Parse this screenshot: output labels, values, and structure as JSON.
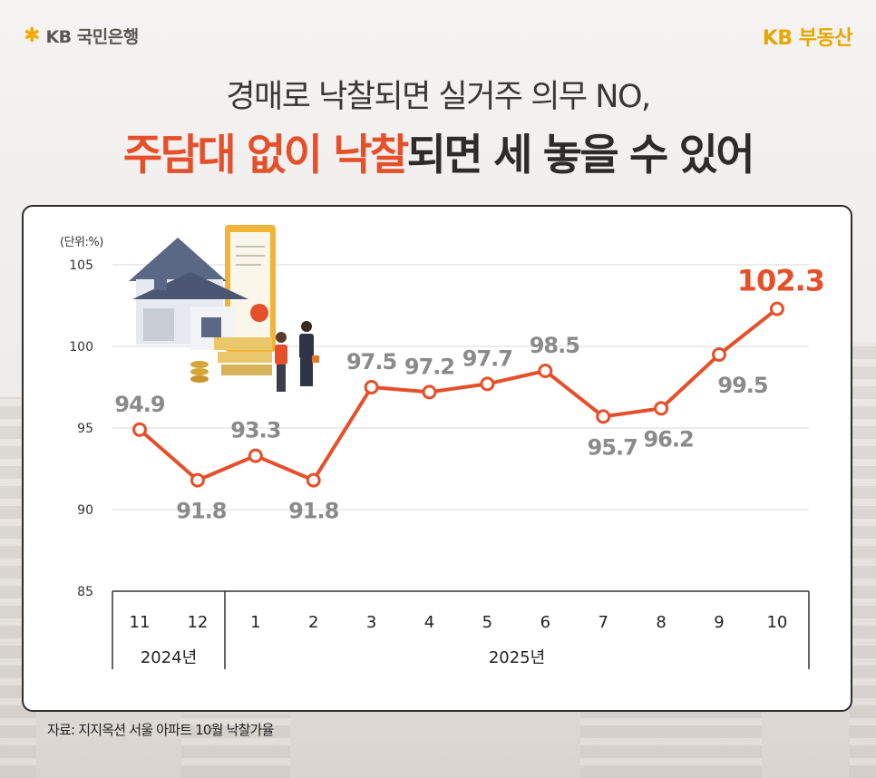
{
  "header": {
    "brand_left": "KB 국민은행",
    "brand_right": "KB 부동산"
  },
  "title": {
    "line1": "경매로 낙찰되면 실거주 의무 NO,",
    "line2_highlight": "주담대 없이 낙찰",
    "line2_rest": "되면 세 놓을 수 있어"
  },
  "colors": {
    "accent": "#e5502a",
    "label_gray": "#8a8a8a",
    "brand_gold": "#e8a600"
  },
  "illustration": {
    "icon": "house-contract-handshake-icon"
  },
  "chart_data": {
    "type": "line",
    "unit_label": "(단위:%)",
    "categories": [
      "11",
      "12",
      "1",
      "2",
      "3",
      "4",
      "5",
      "6",
      "7",
      "8",
      "9",
      "10"
    ],
    "year_groups": [
      {
        "label": "2024년",
        "span": 2
      },
      {
        "label": "2025년",
        "span": 10
      }
    ],
    "series": [
      {
        "values": [
          94.9,
          91.8,
          93.3,
          91.8,
          97.5,
          97.2,
          97.7,
          98.5,
          95.7,
          96.2,
          99.5,
          102.3
        ]
      }
    ],
    "data_labels": [
      "94.9",
      "91.8",
      "93.3",
      "91.8",
      "97.5",
      "97.2",
      "97.7",
      "98.5",
      "95.7",
      "96.2",
      "99.5",
      "102.3"
    ],
    "y_ticks": [
      "85",
      "90",
      "95",
      "100",
      "105"
    ],
    "ylim": [
      85,
      105
    ],
    "grid": true,
    "xlabel": "",
    "ylabel": "",
    "title": ""
  },
  "source": "자료: 지지옥션 서울 아파트 10월 낙찰가율"
}
